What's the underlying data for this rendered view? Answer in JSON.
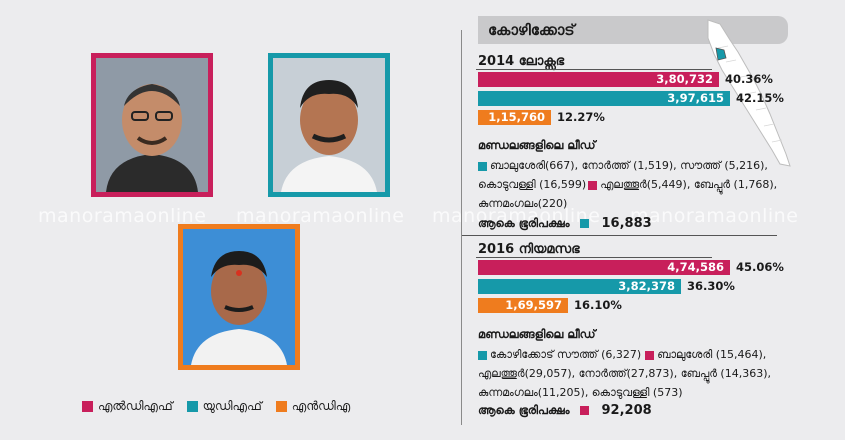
{
  "header": {
    "title": "കോഴിക്കോട്"
  },
  "watermark": "manoramaonline",
  "colors": {
    "ldf": "#c81f5b",
    "udf": "#1699a9",
    "nda": "#ef7c1e"
  },
  "legend": [
    {
      "label": "എൽഡിഎഫ്",
      "color": "#c81f5b"
    },
    {
      "label": "യുഡിഎഫ്",
      "color": "#1699a9"
    },
    {
      "label": "എൻഡിഎ",
      "color": "#ef7c1e"
    }
  ],
  "chart_data": [
    {
      "type": "bar",
      "title": "2014 ലോക്സഭ",
      "categories": [
        "എൽഡിഎഫ്",
        "യുഡിഎഫ്",
        "എൻഡിഎ"
      ],
      "values": [
        380732,
        397615,
        115760
      ],
      "value_labels": [
        "3,80,732",
        "3,97,615",
        "1,15,760"
      ],
      "percent_labels": [
        "40.36%",
        "42.15%",
        "12.27%"
      ],
      "lead_title": "മണ്ഡലങ്ങളിലെ ലീഡ്",
      "lead_udf": "ബാലുശേരി(667), നോർത്ത് (1,519), സൗത്ത് (5,216), കൊടുവള്ളി (16,599)",
      "lead_ldf": "എലത്തൂർ(5,449), ബേപ്പൂർ (1,768), കുന്നമംഗലം(220)",
      "total_label": "ആകെ ഭൂരിപക്ഷം",
      "total_value": "16,883",
      "total_color": "#1699a9"
    },
    {
      "type": "bar",
      "title": "2016 നിയമസഭ",
      "categories": [
        "എൽഡിഎഫ്",
        "യുഡിഎഫ്",
        "എൻഡിഎ"
      ],
      "values": [
        474586,
        382378,
        169597
      ],
      "value_labels": [
        "4,74,586",
        "3,82,378",
        "1,69,597"
      ],
      "percent_labels": [
        "45.06%",
        "36.30%",
        "16.10%"
      ],
      "lead_title": "മണ്ഡലങ്ങളിലെ ലീഡ്",
      "lead_udf": "കോഴിക്കോട് സൗത്ത് (6,327)",
      "lead_ldf": "ബാലുശേരി (15,464), എലത്തൂർ(29,057), നോർത്ത്(27,873), ബേപ്പൂർ (14,363), കുന്നമംഗലം(11,205), കൊടുവള്ളി (573)",
      "total_label": "ആകെ ഭൂരിപക്ഷം",
      "total_value": "92,208",
      "total_color": "#c81f5b"
    }
  ]
}
